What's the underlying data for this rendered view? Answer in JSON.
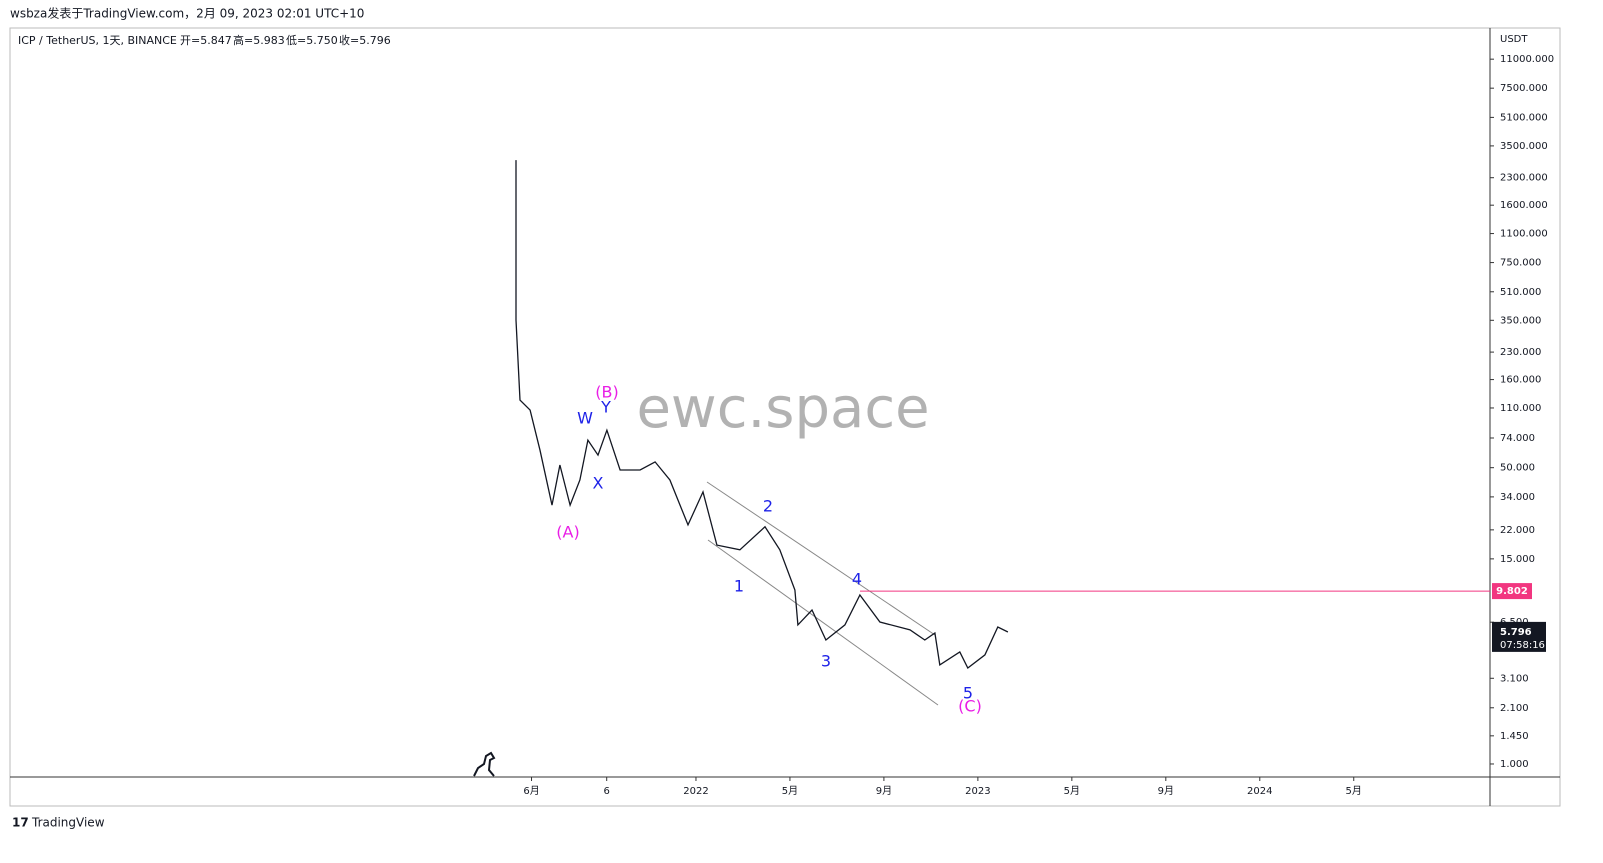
{
  "header": "wsbza发表于TradingView.com，2月 09, 2023 02:01 UTC+10",
  "footer": "TradingView",
  "chart_data": {
    "type": "line",
    "legend": "ICP / TetherUS, 1天, BINANCE",
    "ohlc": [
      "开=5.847",
      "高=5.983",
      "低=5.750",
      "收=5.796"
    ],
    "watermark": "ewc.space",
    "y_unit": "USDT",
    "log_y": true,
    "x": [
      4.34,
      4.34,
      4.51,
      4.94,
      5.36,
      5.87,
      6.21,
      6.64,
      7.06,
      7.4,
      7.83,
      8.21,
      8.77,
      9.62,
      10.26,
      10.89,
      11.66,
      12.3,
      12.89,
      13.87,
      14.94,
      15.57,
      16.21,
      16.34,
      16.94,
      17.53,
      18.34,
      18.98,
      19.83,
      21.11,
      21.74,
      22.17,
      22.38,
      23.23,
      23.57,
      24.3,
      24.85,
      25.28
    ],
    "series": [
      {
        "name": "ICP / TetherUS",
        "color": "#131722",
        "values": [
          2900,
          351,
          122,
          107,
          63,
          30.5,
          51.8,
          30.5,
          42.5,
          72,
          59,
          82,
          48.5,
          48.5,
          54,
          42.5,
          23.5,
          36.3,
          18.0,
          16.9,
          22.9,
          16.9,
          9.95,
          6.27,
          7.64,
          5.14,
          6.27,
          9.31,
          6.52,
          5.87,
          5.14,
          5.64,
          3.7,
          4.39,
          3.55,
          4.22,
          6.1,
          5.71
        ]
      }
    ],
    "xlim": [
      -17.2,
      45.8
    ],
    "xticks": [
      {
        "value": 5,
        "label": "6月"
      },
      {
        "value": 8.2,
        "label": "6"
      },
      {
        "value": 12,
        "label": "2022"
      },
      {
        "value": 16,
        "label": "5月"
      },
      {
        "value": 20,
        "label": "9月"
      },
      {
        "value": 24,
        "label": "2023"
      },
      {
        "value": 28,
        "label": "5月"
      },
      {
        "value": 32,
        "label": "9月"
      },
      {
        "value": 36,
        "label": "2024"
      },
      {
        "value": 40,
        "label": "5月"
      }
    ],
    "ylim": [
      0.842,
      16600
    ],
    "yticks": [
      {
        "value": 11000,
        "label": "11000.000"
      },
      {
        "value": 7500,
        "label": "7500.000"
      },
      {
        "value": 5100,
        "label": "5100.000"
      },
      {
        "value": 3500,
        "label": "3500.000"
      },
      {
        "value": 2300,
        "label": "2300.000"
      },
      {
        "value": 1600,
        "label": "1600.000"
      },
      {
        "value": 1100,
        "label": "1100.000"
      },
      {
        "value": 750,
        "label": "750.000"
      },
      {
        "value": 510,
        "label": "510.000"
      },
      {
        "value": 350,
        "label": "350.000"
      },
      {
        "value": 230,
        "label": "230.000"
      },
      {
        "value": 160,
        "label": "160.000"
      },
      {
        "value": 110,
        "label": "110.000"
      },
      {
        "value": 74,
        "label": "74.000"
      },
      {
        "value": 50,
        "label": "50.000"
      },
      {
        "value": 34,
        "label": "34.000"
      },
      {
        "value": 22,
        "label": "22.000"
      },
      {
        "value": 15,
        "label": "15.000"
      },
      {
        "value": 6.5,
        "label": "6.500"
      },
      {
        "value": 3.1,
        "label": "3.100"
      },
      {
        "value": 2.1,
        "label": "2.100"
      },
      {
        "value": 1.45,
        "label": "1.450"
      },
      {
        "value": 1,
        "label": "1.000"
      }
    ],
    "hline": {
      "value": 9.802,
      "color": "#f23680"
    },
    "last_price": 5.796,
    "countdown": "07:58:16",
    "annotations": [
      "(A)",
      "(B)",
      "(C)",
      "W",
      "X",
      "Y",
      "1",
      "2",
      "3",
      "4",
      "5"
    ]
  }
}
